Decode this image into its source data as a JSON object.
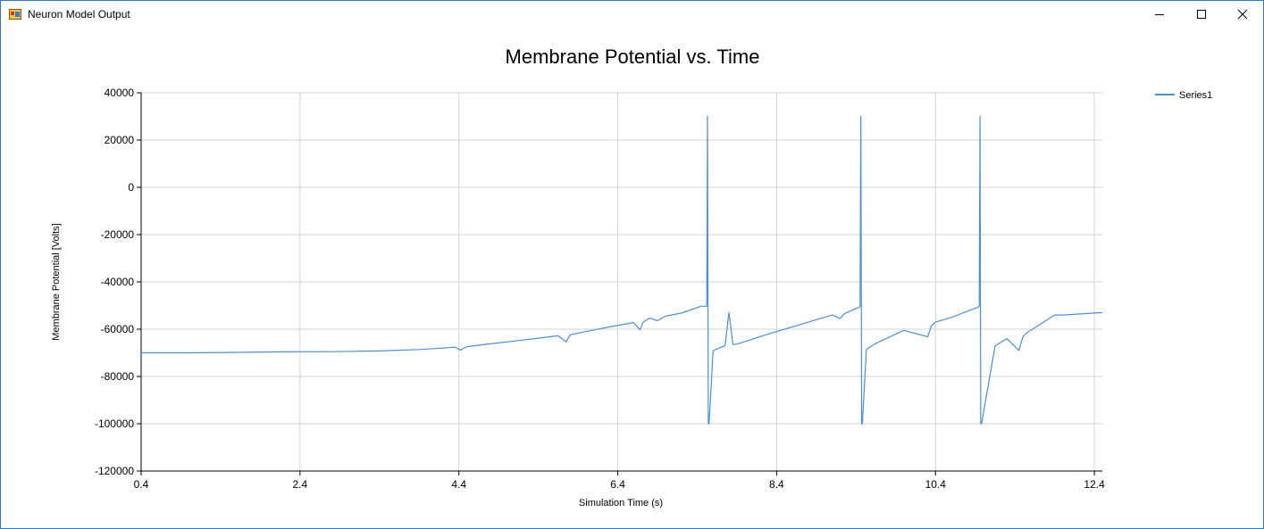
{
  "window": {
    "title": "Neuron Model Output",
    "icon": "app-window-icon",
    "controls": [
      "minimize-icon",
      "maximize-icon",
      "close-icon"
    ]
  },
  "chart_data": {
    "type": "line",
    "title": "Membrane Potential vs. Time",
    "xlabel": "Simulation Time (s)",
    "ylabel": "Membrane Potential [Volts]",
    "xlim": [
      0.4,
      12.5
    ],
    "ylim": [
      -120000,
      40000
    ],
    "xticks": [
      0.4,
      2.4,
      4.4,
      6.4,
      8.4,
      10.4,
      12.4
    ],
    "xtick_labels": [
      "0.4",
      "2.4",
      "4.4",
      "6.4",
      "8.4",
      "10.4",
      "12.4"
    ],
    "yticks": [
      -120000,
      -100000,
      -80000,
      -60000,
      -40000,
      -20000,
      0,
      20000,
      40000
    ],
    "ytick_labels": [
      "-120000",
      "-100000",
      "-80000",
      "-60000",
      "-40000",
      "-20000",
      "0",
      "20000",
      "40000"
    ],
    "grid": true,
    "legend_position": "top-right",
    "series": [
      {
        "name": "Series1",
        "color": "#4a90d9",
        "x": [
          0.4,
          1.0,
          1.6,
          2.2,
          2.8,
          3.4,
          3.9,
          4.2,
          4.35,
          4.42,
          4.5,
          4.8,
          5.1,
          5.4,
          5.65,
          5.75,
          5.8,
          6.0,
          6.3,
          6.6,
          6.68,
          6.72,
          6.8,
          6.9,
          7.0,
          7.2,
          7.45,
          7.52,
          7.53,
          7.54,
          7.55,
          7.6,
          7.75,
          7.8,
          7.85,
          7.87,
          7.95,
          8.3,
          8.7,
          9.1,
          9.2,
          9.25,
          9.45,
          9.46,
          9.47,
          9.48,
          9.53,
          9.65,
          10.0,
          10.3,
          10.35,
          10.4,
          10.6,
          10.95,
          10.96,
          10.97,
          10.98,
          11.15,
          11.3,
          11.45,
          11.5,
          11.55,
          11.7,
          11.9,
          12.0,
          12.5
        ],
        "y": [
          -70000,
          -70000,
          -69800,
          -69600,
          -69500,
          -69200,
          -68600,
          -68000,
          -67600,
          -68800,
          -67400,
          -66200,
          -65000,
          -63800,
          -62800,
          -65400,
          -62400,
          -61000,
          -59000,
          -57200,
          -60300,
          -57000,
          -55300,
          -56400,
          -54500,
          -53200,
          -50300,
          -50300,
          30000,
          -100000,
          -100000,
          -69000,
          -67000,
          -53000,
          -66500,
          -66500,
          -65800,
          -62000,
          -58000,
          -54000,
          -55500,
          -53500,
          -50500,
          30000,
          -100000,
          -100000,
          -68500,
          -66000,
          -60500,
          -63200,
          -58500,
          -57000,
          -55000,
          -50500,
          30000,
          -100000,
          -100000,
          -67000,
          -64000,
          -69000,
          -63200,
          -61500,
          -58300,
          -54000,
          -54000,
          -53000
        ]
      }
    ]
  }
}
